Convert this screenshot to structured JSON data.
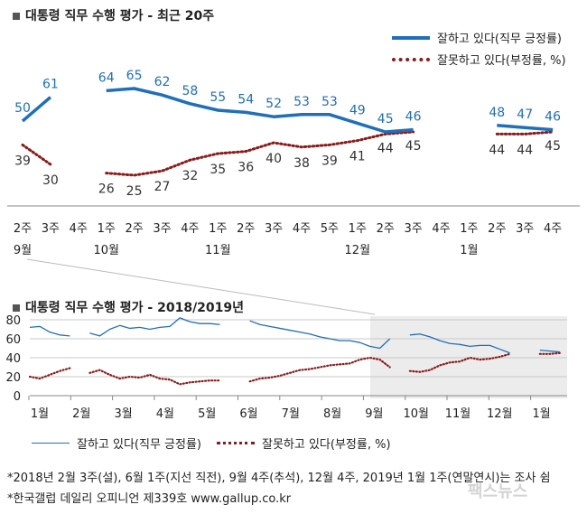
{
  "top": {
    "title": "대통령 직무 수행 평가 - 최근 20주",
    "legend_positive": "잘하고 있다(직무 긍정률)",
    "legend_negative": "잘못하고 있다(부정률, %)",
    "colors": {
      "positive": "#1f6fb9",
      "negative": "#8b1a1a"
    }
  },
  "bottom": {
    "title": "대통령 직무 수행 평가 - 2018/2019년",
    "legend_positive": "잘하고 있다(직무 긍정률)",
    "legend_negative": "잘못하고 있다(부정률, %)"
  },
  "footnotes": {
    "line1": "*2018년 2월 3주(설), 6월 1주(지선 직전), 9월 4주(추석), 12월 4주, 2019년 1월 1주(연말연시)는 조사 쉼",
    "line2": "*한국갤럽 데일리 오피니언 제339호 www.gallup.co.kr"
  },
  "watermark": "팩스뉴스",
  "chart_data": [
    {
      "type": "line",
      "title": "대통령 직무 수행 평가 - 최근 20주",
      "categories": [
        "2주",
        "3주",
        "4주",
        "1주",
        "2주",
        "3주",
        "4주",
        "1주",
        "2주",
        "3주",
        "4주",
        "5주",
        "1주",
        "2주",
        "3주",
        "4주",
        "1주",
        "2주",
        "3주",
        "4주"
      ],
      "month_labels": [
        {
          "index": 0,
          "label": "9월"
        },
        {
          "index": 3,
          "label": "10월"
        },
        {
          "index": 7,
          "label": "11월"
        },
        {
          "index": 12,
          "label": "12월"
        },
        {
          "index": 16,
          "label": "1월"
        }
      ],
      "series": [
        {
          "name": "잘하고 있다(직무 긍정률)",
          "values": [
            50,
            61,
            null,
            64,
            65,
            62,
            58,
            55,
            54,
            52,
            53,
            53,
            49,
            45,
            46,
            null,
            null,
            48,
            47,
            46
          ],
          "style": "solid"
        },
        {
          "name": "잘못하고 있다(부정률, %)",
          "values": [
            39,
            30,
            null,
            26,
            25,
            27,
            32,
            35,
            36,
            40,
            38,
            39,
            41,
            44,
            45,
            null,
            null,
            44,
            44,
            45
          ],
          "style": "dotted"
        }
      ],
      "ylim": [
        20,
        70
      ]
    },
    {
      "type": "line",
      "title": "대통령 직무 수행 평가 - 2018/2019년",
      "x_tick_labels": [
        "1월",
        "2월",
        "3월",
        "4월",
        "5월",
        "6월",
        "7월",
        "8월",
        "9월",
        "10월",
        "11월",
        "12월",
        "1월"
      ],
      "y_tick_labels": [
        "0",
        "20",
        "40",
        "60",
        "80"
      ],
      "ylim": [
        0,
        90
      ],
      "grid": "horizontal",
      "highlight_region": "최근 20주",
      "series": [
        {
          "name": "잘하고 있다(직무 긍정률)",
          "style": "solid",
          "values": [
            72,
            73,
            67,
            64,
            63,
            null,
            66,
            63,
            70,
            74,
            71,
            72,
            70,
            72,
            73,
            82,
            78,
            76,
            76,
            75,
            null,
            null,
            79,
            75,
            73,
            71,
            69,
            67,
            65,
            62,
            60,
            58,
            58,
            56,
            52,
            50,
            60,
            null,
            64,
            65,
            62,
            58,
            55,
            54,
            52,
            53,
            53,
            49,
            45,
            null,
            null,
            48,
            47,
            46
          ]
        },
        {
          "name": "잘못하고 있다(부정률, %)",
          "style": "dotted",
          "values": [
            20,
            18,
            22,
            26,
            29,
            null,
            24,
            27,
            22,
            18,
            20,
            19,
            22,
            18,
            17,
            12,
            14,
            15,
            16,
            16,
            null,
            null,
            15,
            18,
            19,
            21,
            24,
            27,
            28,
            30,
            32,
            33,
            34,
            38,
            40,
            38,
            30,
            null,
            26,
            25,
            27,
            32,
            35,
            36,
            40,
            38,
            39,
            41,
            44,
            null,
            null,
            44,
            44,
            45
          ]
        }
      ]
    }
  ]
}
